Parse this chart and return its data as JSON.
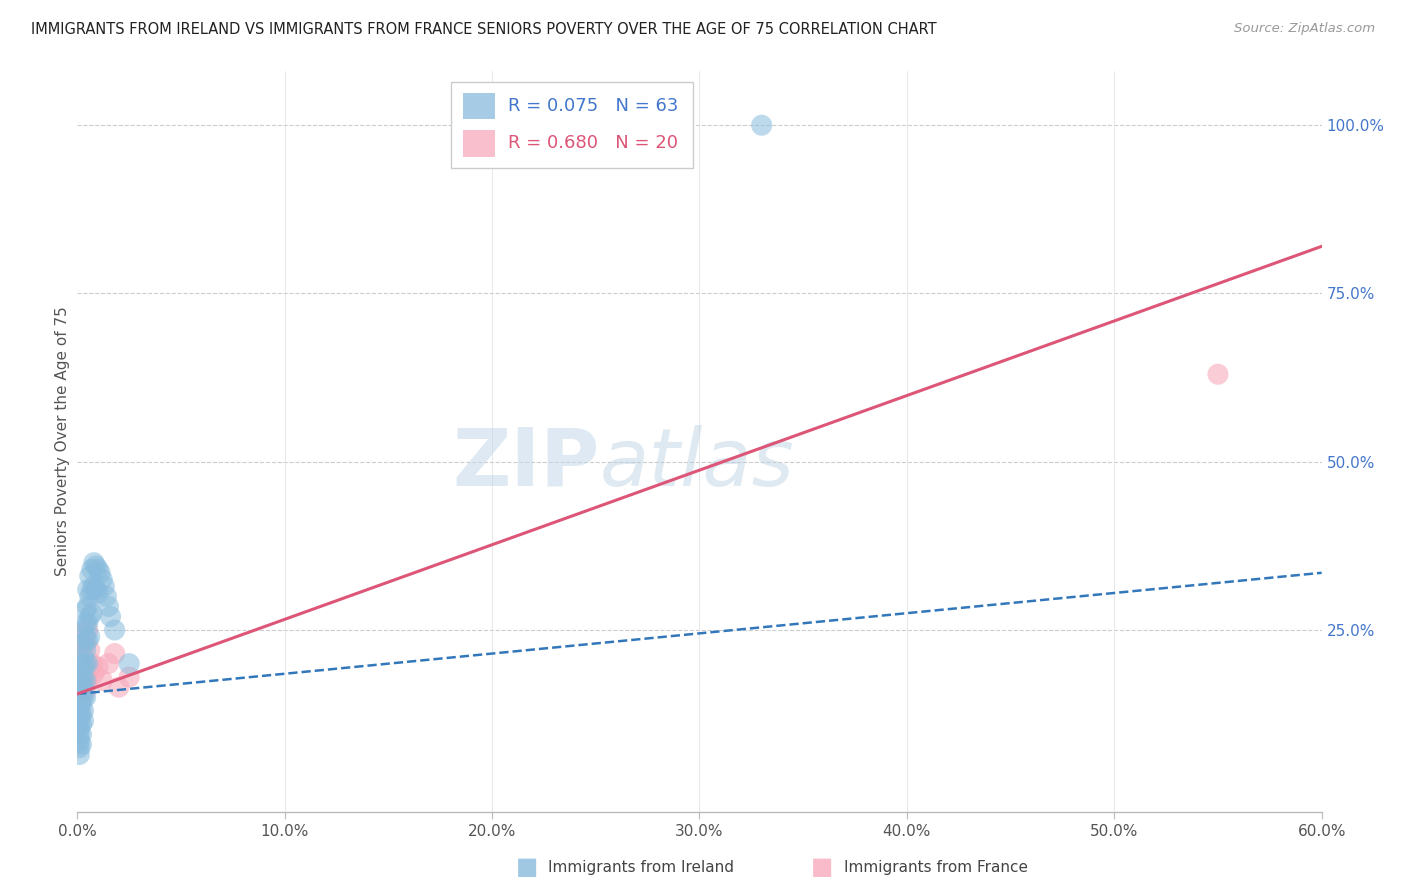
{
  "title": "IMMIGRANTS FROM IRELAND VS IMMIGRANTS FROM FRANCE SENIORS POVERTY OVER THE AGE OF 75 CORRELATION CHART",
  "source": "Source: ZipAtlas.com",
  "ylabel": "Seniors Poverty Over the Age of 75",
  "xlim": [
    0.0,
    0.6
  ],
  "ylim": [
    -0.02,
    1.08
  ],
  "xtick_labels": [
    "0.0%",
    "10.0%",
    "20.0%",
    "30.0%",
    "40.0%",
    "50.0%",
    "60.0%"
  ],
  "xtick_vals": [
    0.0,
    0.1,
    0.2,
    0.3,
    0.4,
    0.5,
    0.6
  ],
  "ytick_labels_right": [
    "100.0%",
    "75.0%",
    "50.0%",
    "25.0%"
  ],
  "ytick_vals_right": [
    1.0,
    0.75,
    0.5,
    0.25
  ],
  "ireland_R": 0.075,
  "ireland_N": 63,
  "france_R": 0.68,
  "france_N": 20,
  "ireland_color": "#88bbdd",
  "france_color": "#f8aabc",
  "ireland_trend_color": "#3377bb",
  "france_trend_color": "#dd5577",
  "watermark_zip": "ZIP",
  "watermark_atlas": "atlas",
  "legend_label_ireland": "Immigrants from Ireland",
  "legend_label_france": "Immigrants from France",
  "ireland_trend_x0": 0.0,
  "ireland_trend_y0": 0.155,
  "ireland_trend_x1": 0.6,
  "ireland_trend_y1": 0.335,
  "france_trend_x0": 0.0,
  "france_trend_y0": 0.155,
  "france_trend_x1": 0.6,
  "france_trend_y1": 0.82,
  "ireland_x": [
    0.001,
    0.001,
    0.001,
    0.001,
    0.001,
    0.001,
    0.001,
    0.001,
    0.001,
    0.001,
    0.002,
    0.002,
    0.002,
    0.002,
    0.002,
    0.002,
    0.002,
    0.002,
    0.002,
    0.002,
    0.003,
    0.003,
    0.003,
    0.003,
    0.003,
    0.003,
    0.003,
    0.003,
    0.003,
    0.004,
    0.004,
    0.004,
    0.004,
    0.004,
    0.004,
    0.004,
    0.005,
    0.005,
    0.005,
    0.005,
    0.005,
    0.006,
    0.006,
    0.006,
    0.006,
    0.007,
    0.007,
    0.007,
    0.008,
    0.008,
    0.009,
    0.009,
    0.01,
    0.01,
    0.011,
    0.012,
    0.013,
    0.014,
    0.015,
    0.016,
    0.018,
    0.025,
    0.33
  ],
  "ireland_y": [
    0.155,
    0.145,
    0.135,
    0.125,
    0.115,
    0.105,
    0.095,
    0.085,
    0.075,
    0.065,
    0.2,
    0.185,
    0.17,
    0.16,
    0.15,
    0.14,
    0.125,
    0.11,
    0.095,
    0.08,
    0.25,
    0.23,
    0.21,
    0.195,
    0.18,
    0.165,
    0.15,
    0.13,
    0.115,
    0.28,
    0.26,
    0.24,
    0.22,
    0.2,
    0.175,
    0.15,
    0.31,
    0.285,
    0.26,
    0.235,
    0.2,
    0.33,
    0.3,
    0.27,
    0.24,
    0.34,
    0.31,
    0.275,
    0.35,
    0.315,
    0.345,
    0.31,
    0.34,
    0.305,
    0.335,
    0.325,
    0.315,
    0.3,
    0.285,
    0.27,
    0.25,
    0.2,
    1.0
  ],
  "france_x": [
    0.001,
    0.001,
    0.002,
    0.002,
    0.003,
    0.003,
    0.004,
    0.004,
    0.005,
    0.005,
    0.006,
    0.007,
    0.008,
    0.01,
    0.012,
    0.015,
    0.018,
    0.02,
    0.025,
    0.55
  ],
  "france_y": [
    0.21,
    0.155,
    0.23,
    0.165,
    0.245,
    0.175,
    0.23,
    0.16,
    0.25,
    0.175,
    0.22,
    0.2,
    0.185,
    0.195,
    0.175,
    0.2,
    0.215,
    0.165,
    0.18,
    0.63
  ]
}
